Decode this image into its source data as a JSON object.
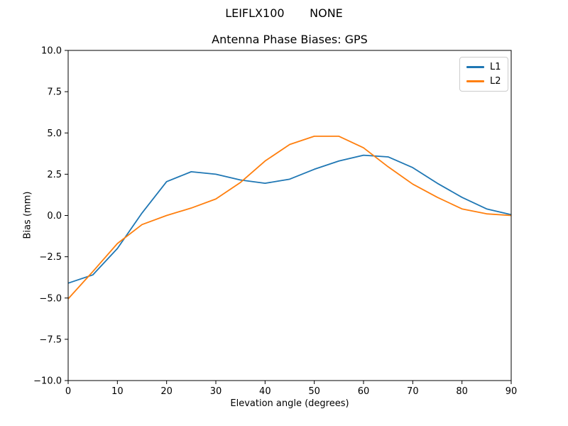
{
  "header": {
    "suptitle": "LEIFLX100       NONE"
  },
  "colors": {
    "axes": "#000000",
    "legend_border": "#cccccc",
    "background": "#ffffff",
    "l1": "#1f77b4",
    "l2": "#ff7f0e"
  },
  "chart_data": {
    "type": "line",
    "title": "Antenna Phase Biases: GPS",
    "xlabel": "Elevation angle (degrees)",
    "ylabel": "Bias (mm)",
    "xlim": [
      0,
      90
    ],
    "ylim": [
      -10,
      10
    ],
    "grid": false,
    "legend_position": "upper right",
    "xticks": [
      0,
      10,
      20,
      30,
      40,
      50,
      60,
      70,
      80,
      90
    ],
    "xtick_labels": [
      "0",
      "10",
      "20",
      "30",
      "40",
      "50",
      "60",
      "70",
      "80",
      "90"
    ],
    "yticks": [
      10,
      7.5,
      5,
      2.5,
      0,
      -2.5,
      -5,
      -7.5,
      -10
    ],
    "ytick_labels": [
      "10.0",
      "7.5",
      "5.0",
      "2.5",
      "0.0",
      "−2.5",
      "−5.0",
      "−7.5",
      "−10.0"
    ],
    "x": [
      0,
      5,
      10,
      15,
      20,
      25,
      30,
      35,
      40,
      45,
      50,
      55,
      60,
      65,
      70,
      75,
      80,
      85,
      90
    ],
    "series": [
      {
        "name": "L1",
        "color": "#1f77b4",
        "values": [
          -4.1,
          -3.6,
          -2.0,
          0.15,
          2.05,
          2.65,
          2.5,
          2.15,
          1.95,
          2.2,
          2.8,
          3.3,
          3.65,
          3.55,
          2.9,
          1.95,
          1.1,
          0.4,
          0.05
        ]
      },
      {
        "name": "L2",
        "color": "#ff7f0e",
        "values": [
          -5.05,
          -3.4,
          -1.7,
          -0.55,
          0.0,
          0.45,
          1.0,
          2.0,
          3.3,
          4.3,
          4.8,
          4.8,
          4.1,
          2.95,
          1.9,
          1.1,
          0.4,
          0.1,
          0.0
        ]
      }
    ]
  }
}
